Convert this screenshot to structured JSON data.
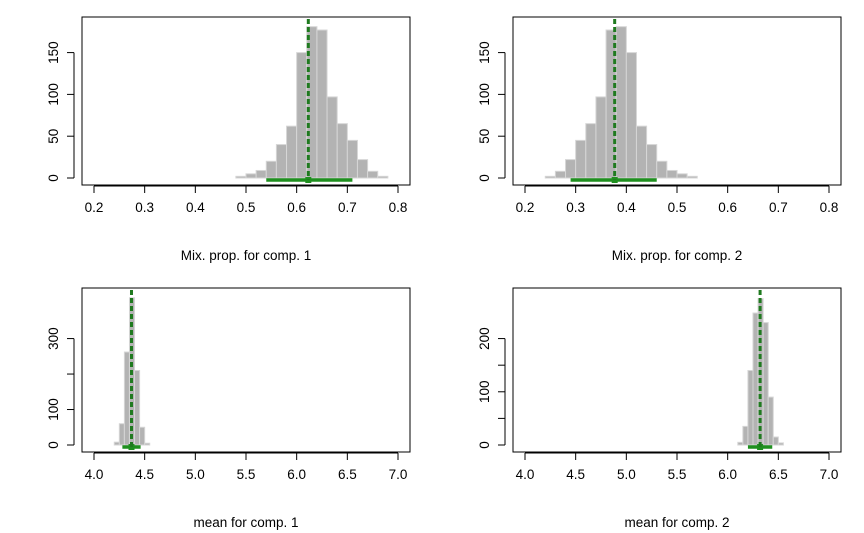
{
  "colors": {
    "bar_fill": "#b3b3b3",
    "bar_stroke": "#d6d6d6",
    "mean_line": "#1f7a1f",
    "interval": "#1f8f1f"
  },
  "chart_data": [
    {
      "type": "bar",
      "xlabel": "Mix. prop. for comp. 1",
      "xlim": [
        0.2,
        0.8
      ],
      "xticks": [
        "0.2",
        "0.3",
        "0.4",
        "0.5",
        "0.6",
        "0.7",
        "0.8"
      ],
      "yticks": [
        "0",
        "50",
        "100",
        "150"
      ],
      "ylim": [
        0,
        183
      ],
      "bin_width": 0.02,
      "bins": [
        {
          "x0": 0.48,
          "count": 2
        },
        {
          "x0": 0.5,
          "count": 5
        },
        {
          "x0": 0.52,
          "count": 9
        },
        {
          "x0": 0.54,
          "count": 20
        },
        {
          "x0": 0.56,
          "count": 40
        },
        {
          "x0": 0.58,
          "count": 62
        },
        {
          "x0": 0.6,
          "count": 150
        },
        {
          "x0": 0.62,
          "count": 181
        },
        {
          "x0": 0.64,
          "count": 177
        },
        {
          "x0": 0.66,
          "count": 97
        },
        {
          "x0": 0.68,
          "count": 65
        },
        {
          "x0": 0.7,
          "count": 45
        },
        {
          "x0": 0.72,
          "count": 22
        },
        {
          "x0": 0.74,
          "count": 8
        },
        {
          "x0": 0.76,
          "count": 2
        }
      ],
      "mean": 0.623,
      "interval": [
        0.54,
        0.71
      ]
    },
    {
      "type": "bar",
      "xlabel": "Mix. prop. for comp. 2",
      "xlim": [
        0.2,
        0.8
      ],
      "xticks": [
        "0.2",
        "0.3",
        "0.4",
        "0.5",
        "0.6",
        "0.7",
        "0.8"
      ],
      "yticks": [
        "0",
        "50",
        "100",
        "150"
      ],
      "ylim": [
        0,
        183
      ],
      "bin_width": 0.02,
      "bins": [
        {
          "x0": 0.24,
          "count": 2
        },
        {
          "x0": 0.26,
          "count": 8
        },
        {
          "x0": 0.28,
          "count": 22
        },
        {
          "x0": 0.3,
          "count": 45
        },
        {
          "x0": 0.32,
          "count": 65
        },
        {
          "x0": 0.34,
          "count": 97
        },
        {
          "x0": 0.36,
          "count": 177
        },
        {
          "x0": 0.38,
          "count": 181
        },
        {
          "x0": 0.4,
          "count": 150
        },
        {
          "x0": 0.42,
          "count": 62
        },
        {
          "x0": 0.44,
          "count": 40
        },
        {
          "x0": 0.46,
          "count": 20
        },
        {
          "x0": 0.48,
          "count": 9
        },
        {
          "x0": 0.5,
          "count": 5
        },
        {
          "x0": 0.52,
          "count": 2
        }
      ],
      "mean": 0.377,
      "interval": [
        0.29,
        0.46
      ]
    },
    {
      "type": "bar",
      "xlabel": "mean for comp. 1",
      "xlim": [
        4.0,
        7.0
      ],
      "xticks": [
        "4.0",
        "4.5",
        "5.0",
        "5.5",
        "6.0",
        "6.5",
        "7.0"
      ],
      "yticks": [
        "0",
        "100",
        "300"
      ],
      "ytick_values": [
        0,
        100,
        300
      ],
      "ylim": [
        0,
        420
      ],
      "bin_width": 0.05,
      "bins": [
        {
          "x0": 4.2,
          "count": 8
        },
        {
          "x0": 4.25,
          "count": 60
        },
        {
          "x0": 4.3,
          "count": 262
        },
        {
          "x0": 4.35,
          "count": 415
        },
        {
          "x0": 4.4,
          "count": 210
        },
        {
          "x0": 4.45,
          "count": 50
        },
        {
          "x0": 4.5,
          "count": 5
        }
      ],
      "mean": 4.37,
      "interval": [
        4.28,
        4.46
      ]
    },
    {
      "type": "bar",
      "xlabel": "mean for comp. 2",
      "xlim": [
        4.0,
        7.0
      ],
      "xticks": [
        "4.0",
        "4.5",
        "5.0",
        "5.5",
        "6.0",
        "6.5",
        "7.0"
      ],
      "yticks": [
        "0",
        "100",
        "200"
      ],
      "ytick_values": [
        0,
        100,
        200
      ],
      "ylim": [
        0,
        280
      ],
      "bin_width": 0.05,
      "bins": [
        {
          "x0": 6.1,
          "count": 5
        },
        {
          "x0": 6.15,
          "count": 35
        },
        {
          "x0": 6.2,
          "count": 140
        },
        {
          "x0": 6.25,
          "count": 248
        },
        {
          "x0": 6.3,
          "count": 275
        },
        {
          "x0": 6.35,
          "count": 230
        },
        {
          "x0": 6.4,
          "count": 90
        },
        {
          "x0": 6.45,
          "count": 15
        },
        {
          "x0": 6.5,
          "count": 4
        }
      ],
      "mean": 6.32,
      "interval": [
        6.2,
        6.44
      ]
    }
  ]
}
